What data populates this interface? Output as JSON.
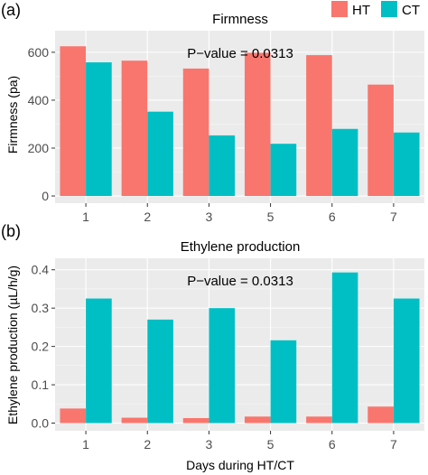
{
  "legend": [
    {
      "label": "HT",
      "color": "#f8766d"
    },
    {
      "label": "CT",
      "color": "#00bfc4"
    }
  ],
  "chart_data": [
    {
      "type": "bar",
      "panel_label": "(a)",
      "title": "Firmness",
      "annotation": "P−value = 0.0313",
      "xlabel": "",
      "ylabel": "Firmness (pa)",
      "categories": [
        "1",
        "2",
        "3",
        "5",
        "6",
        "7"
      ],
      "ylim": [
        -30,
        690
      ],
      "yticks": [
        0,
        200,
        400,
        600
      ],
      "ytick_labels": [
        "0",
        "200",
        "400",
        "600"
      ],
      "grid": true,
      "series": [
        {
          "name": "HT",
          "color": "#f8766d",
          "values": [
            625,
            565,
            532,
            598,
            588,
            465
          ]
        },
        {
          "name": "CT",
          "color": "#00bfc4",
          "values": [
            558,
            352,
            253,
            218,
            280,
            265
          ]
        }
      ]
    },
    {
      "type": "bar",
      "panel_label": "(b)",
      "title": "Ethylene production",
      "annotation": "P−value = 0.0313",
      "xlabel": "Days during HT/CT",
      "ylabel": "Ethylene production (µL/h/g)",
      "categories": [
        "1",
        "2",
        "3",
        "5",
        "6",
        "7"
      ],
      "ylim": [
        -0.02,
        0.43
      ],
      "yticks": [
        0.0,
        0.1,
        0.2,
        0.3,
        0.4
      ],
      "ytick_labels": [
        "0.0",
        "0.1",
        "0.2",
        "0.3",
        "0.4"
      ],
      "grid": true,
      "series": [
        {
          "name": "HT",
          "color": "#f8766d",
          "values": [
            0.038,
            0.014,
            0.013,
            0.017,
            0.017,
            0.043
          ]
        },
        {
          "name": "CT",
          "color": "#00bfc4",
          "values": [
            0.325,
            0.27,
            0.3,
            0.216,
            0.393,
            0.325
          ]
        }
      ]
    }
  ]
}
